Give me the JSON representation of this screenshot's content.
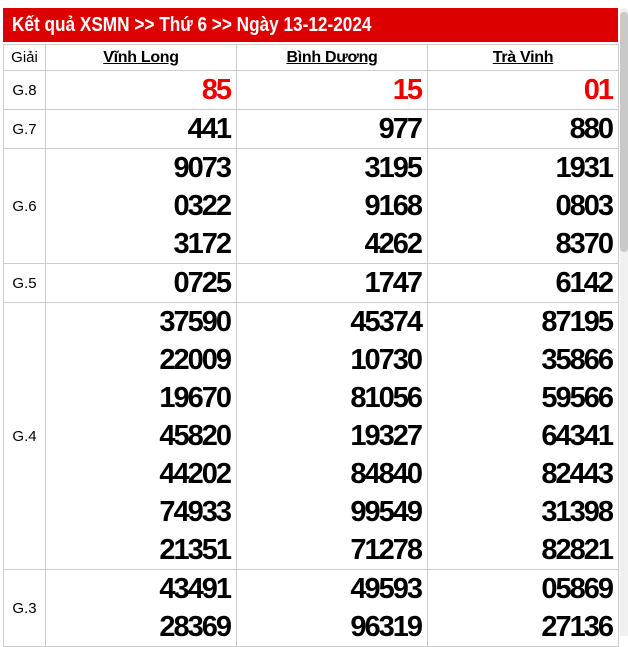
{
  "header": {
    "title": "Kết quả XSMN >> Thứ 6 >> Ngày 13-12-2024"
  },
  "table": {
    "corner_label": "Giải",
    "stations": [
      "Vĩnh Long",
      "Bình Dương",
      "Trà Vinh"
    ],
    "groups": [
      {
        "label": "G.8",
        "highlight": true,
        "rows": [
          [
            "85",
            "15",
            "01"
          ]
        ]
      },
      {
        "label": "G.7",
        "highlight": false,
        "rows": [
          [
            "441",
            "977",
            "880"
          ]
        ]
      },
      {
        "label": "G.6",
        "highlight": false,
        "rows": [
          [
            "9073",
            "3195",
            "1931"
          ],
          [
            "0322",
            "9168",
            "0803"
          ],
          [
            "3172",
            "4262",
            "8370"
          ]
        ]
      },
      {
        "label": "G.5",
        "highlight": false,
        "rows": [
          [
            "0725",
            "1747",
            "6142"
          ]
        ]
      },
      {
        "label": "G.4",
        "highlight": false,
        "rows": [
          [
            "37590",
            "45374",
            "87195"
          ],
          [
            "22009",
            "10730",
            "35866"
          ],
          [
            "19670",
            "81056",
            "59566"
          ],
          [
            "45820",
            "19327",
            "64341"
          ],
          [
            "44202",
            "84840",
            "82443"
          ],
          [
            "74933",
            "99549",
            "31398"
          ],
          [
            "21351",
            "71278",
            "82821"
          ]
        ]
      },
      {
        "label": "G.3",
        "highlight": false,
        "rows": [
          [
            "43491",
            "49593",
            "05869"
          ],
          [
            "28369",
            "96319",
            "27136"
          ]
        ]
      }
    ]
  },
  "colors": {
    "title_bar": "#dd0000",
    "highlight_number": "#ee0000",
    "border": "#cccccc",
    "scrollbar_track": "#f0f0f0",
    "scrollbar_thumb": "#c9c9c9"
  }
}
